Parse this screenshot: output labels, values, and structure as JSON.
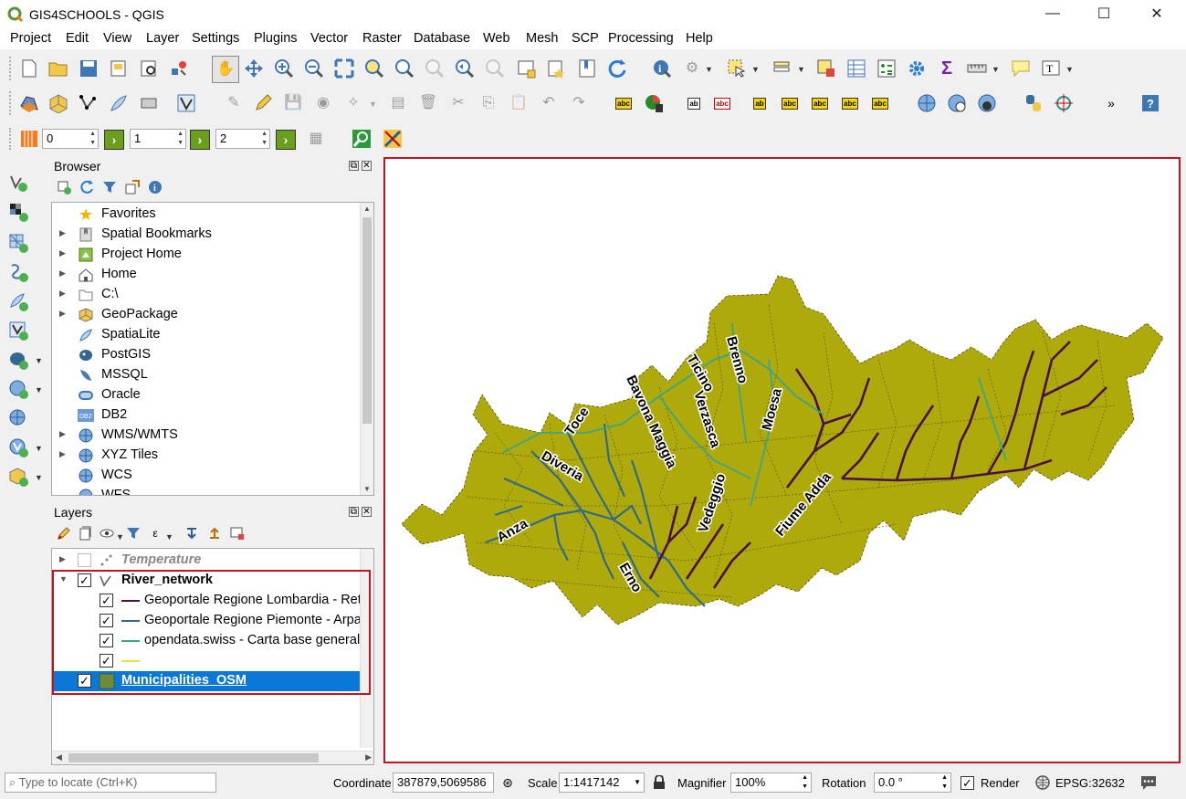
{
  "window": {
    "title": "GIS4SCHOOLS - QGIS",
    "minimize_glyph": "—",
    "maximize_glyph": "☐",
    "close_glyph": "✕"
  },
  "menu": [
    "Project",
    "Edit",
    "View",
    "Layer",
    "Settings",
    "Plugins",
    "Vector",
    "Raster",
    "Database",
    "Web",
    "Mesh",
    "SCP",
    "Processing",
    "Help"
  ],
  "toolbar3": {
    "spin1": "0",
    "spin2": "1",
    "spin3": "2"
  },
  "browser": {
    "title": "Browser",
    "items": [
      {
        "label": "Favorites",
        "icon": "star-icon",
        "expandable": false
      },
      {
        "label": "Spatial Bookmarks",
        "icon": "bookmark-icon",
        "expandable": true
      },
      {
        "label": "Project Home",
        "icon": "project-home-icon",
        "expandable": true
      },
      {
        "label": "Home",
        "icon": "home-icon",
        "expandable": true
      },
      {
        "label": "C:\\",
        "icon": "folder-icon",
        "expandable": true
      },
      {
        "label": "GeoPackage",
        "icon": "geopackage-icon",
        "expandable": true
      },
      {
        "label": "SpatiaLite",
        "icon": "spatialite-icon",
        "expandable": false
      },
      {
        "label": "PostGIS",
        "icon": "postgis-icon",
        "expandable": false
      },
      {
        "label": "MSSQL",
        "icon": "mssql-icon",
        "expandable": false
      },
      {
        "label": "Oracle",
        "icon": "oracle-icon",
        "expandable": false
      },
      {
        "label": "DB2",
        "icon": "db2-icon",
        "expandable": false
      },
      {
        "label": "WMS/WMTS",
        "icon": "globe-icon",
        "expandable": true
      },
      {
        "label": "XYZ Tiles",
        "icon": "globe-icon",
        "expandable": true
      },
      {
        "label": "WCS",
        "icon": "globe-icon",
        "expandable": false
      },
      {
        "label": "WFS",
        "icon": "globe-icon",
        "expandable": false
      }
    ]
  },
  "layers": {
    "title": "Layers",
    "items": [
      {
        "label": "Temperature",
        "checked": false,
        "style": "italic-bold-grey"
      },
      {
        "label": "River_network",
        "checked": true,
        "style": "bold"
      },
      {
        "label": "Geoportale Regione Lombardia - Ret",
        "checked": true,
        "color": "#4a0f4a"
      },
      {
        "label": "Geoportale Regione Piemonte - Arpa",
        "checked": true,
        "color": "#2f6a8a"
      },
      {
        "label": "opendata.swiss - Carta base generaliz",
        "checked": true,
        "color": "#3aa58a"
      },
      {
        "label": "",
        "checked": true,
        "color": "#f0e040"
      },
      {
        "label": "Municipalities_OSM",
        "checked": true,
        "color": "#6e8a3a"
      }
    ]
  },
  "map": {
    "fill_color": "#aeaa0c",
    "rivers": {
      "lombardia": "#4a0f4a",
      "piemonte": "#2f6a8a",
      "swiss": "#3aa58a"
    },
    "labels": [
      "Toce",
      "Bavona Maggia",
      "Ticino",
      "Brenno",
      "Verzasca",
      "Moesa",
      "Diveria",
      "Anza",
      "Vedeggio",
      "Fiume Adda",
      "Erno"
    ]
  },
  "status": {
    "locate_placeholder": "Type to locate (Ctrl+K)",
    "coordinate_label": "Coordinate",
    "coordinate": "387879,5069586",
    "scale_label": "Scale",
    "scale": "1:1417142",
    "magnifier_label": "Magnifier",
    "magnifier": "100%",
    "rotation_label": "Rotation",
    "rotation": "0.0 °",
    "render_label": "Render",
    "crs": "EPSG:32632"
  }
}
